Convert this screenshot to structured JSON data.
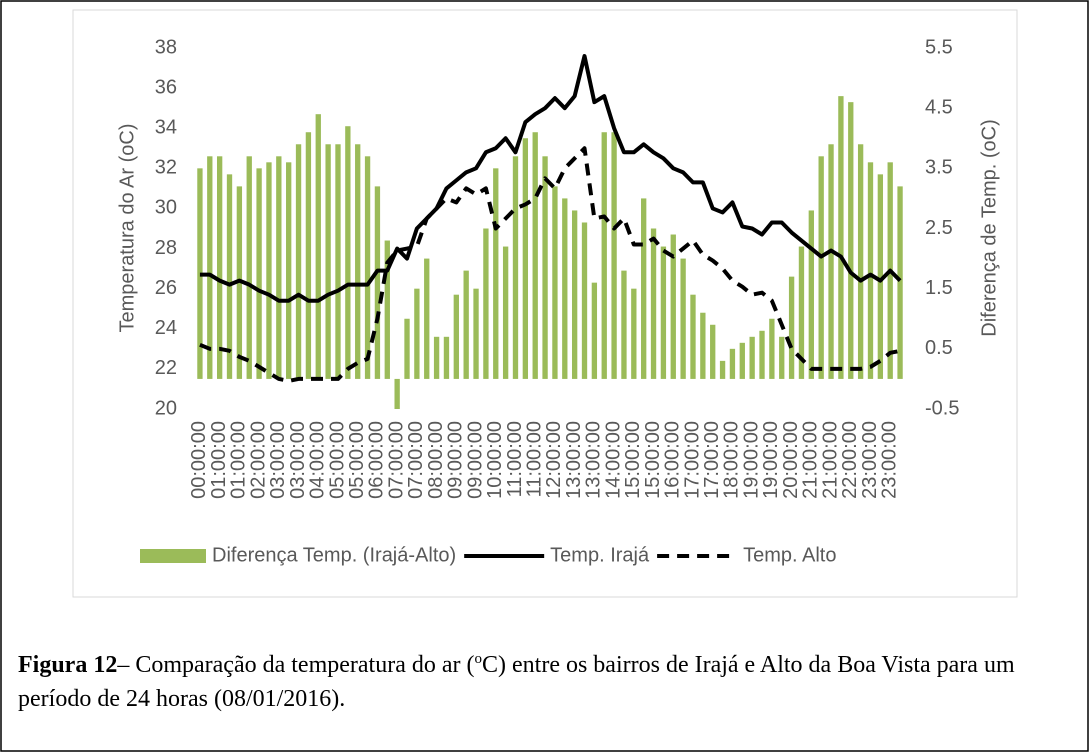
{
  "chart_data": {
    "type": "combo",
    "y_label": "Temperatura do Ar (oC)",
    "y2_label": "Diferença de Temp. (oC)",
    "categories": [
      "00:00:00",
      null,
      "01:00:00",
      null,
      "01:00:00",
      null,
      "02:00:00",
      null,
      "03:00:00",
      null,
      "03:00:00",
      null,
      "04:00:00",
      null,
      "05:00:00",
      null,
      "05:00:00",
      null,
      "06:00:00",
      null,
      "07:00:00",
      null,
      "07:00:00",
      null,
      "08:00:00",
      null,
      "09:00:00",
      null,
      "09:00:00",
      null,
      "10:00:00",
      null,
      "11:00:00",
      null,
      "11:00:00",
      null,
      "12:00:00",
      null,
      "13:00:00",
      null,
      "13:00:00",
      null,
      "14:00:00",
      null,
      "15:00:00",
      null,
      "15:00:00",
      null,
      "16:00:00",
      null,
      "17:00:00",
      null,
      "17:00:00",
      null,
      "18:00:00",
      null,
      "19:00:00",
      null,
      "19:00:00",
      null,
      "20:00:00",
      null,
      "21:00:00",
      null,
      "21:00:00",
      null,
      "22:00:00",
      null,
      "23:00:00",
      null,
      "23:00:00",
      null
    ],
    "ylim": [
      20,
      38
    ],
    "yticks": [
      20,
      22,
      24,
      26,
      28,
      30,
      32,
      34,
      36,
      38
    ],
    "y2lim": [
      -0.5,
      5.5
    ],
    "y2ticks": [
      -0.5,
      0.5,
      1.5,
      2.5,
      3.5,
      4.5,
      5.5
    ],
    "legend": "bottom",
    "series": [
      {
        "name": "Diferença Temp. (Irajá-Alto)",
        "type": "bar",
        "axis": "y2",
        "color": "#9bbb59",
        "values": [
          3.5,
          3.7,
          3.7,
          3.4,
          3.2,
          3.7,
          3.5,
          3.6,
          3.7,
          3.6,
          3.9,
          4.1,
          4.4,
          3.9,
          3.9,
          4.2,
          3.9,
          3.7,
          3.2,
          2.3,
          -0.5,
          1.0,
          1.5,
          2.0,
          0.7,
          0.7,
          1.4,
          1.8,
          1.5,
          2.5,
          3.5,
          2.2,
          3.7,
          4.0,
          4.1,
          3.7,
          3.2,
          3.0,
          2.8,
          2.6,
          1.6,
          4.1,
          4.1,
          1.8,
          1.5,
          3.0,
          2.5,
          2.2,
          2.4,
          2.0,
          1.4,
          1.1,
          0.9,
          0.3,
          0.5,
          0.6,
          0.7,
          0.8,
          1.0,
          0.7,
          1.7,
          2.2,
          2.8,
          3.7,
          3.9,
          4.7,
          4.6,
          3.9,
          3.6,
          3.4,
          3.6,
          3.2
        ]
      },
      {
        "name": "Temp. Irajá",
        "type": "line",
        "color": "#000000",
        "dashed": false,
        "values": [
          26.7,
          26.7,
          26.4,
          26.2,
          26.4,
          26.2,
          25.9,
          25.7,
          25.4,
          25.4,
          25.7,
          25.4,
          25.4,
          25.7,
          25.9,
          26.2,
          26.2,
          26.2,
          26.9,
          26.9,
          28.0,
          27.5,
          29.0,
          29.5,
          30.0,
          31.0,
          31.4,
          31.8,
          32.0,
          32.8,
          33.0,
          33.5,
          32.8,
          34.3,
          34.7,
          35.0,
          35.5,
          35.0,
          35.6,
          37.6,
          35.3,
          35.6,
          34.0,
          32.8,
          32.8,
          33.2,
          32.8,
          32.5,
          32.0,
          31.8,
          31.3,
          31.3,
          30.0,
          29.8,
          30.3,
          29.1,
          29.0,
          28.7,
          29.3,
          29.3,
          28.8,
          28.4,
          28.0,
          27.6,
          27.9,
          27.6,
          26.8,
          26.4,
          26.7,
          26.4,
          26.9,
          26.4
        ]
      },
      {
        "name": "Temp. Alto",
        "type": "line",
        "color": "#000000",
        "dashed": true,
        "values": [
          23.2,
          23.0,
          23.0,
          22.9,
          22.6,
          22.4,
          22.1,
          21.8,
          21.5,
          21.4,
          21.5,
          21.5,
          21.5,
          21.5,
          21.5,
          22.0,
          22.3,
          22.5,
          24.5,
          27.3,
          27.9,
          28.0,
          28.1,
          29.5,
          30.0,
          30.5,
          30.3,
          31.0,
          30.7,
          31.0,
          29.0,
          29.5,
          30.0,
          30.2,
          30.5,
          31.5,
          31.0,
          32.0,
          32.5,
          33.0,
          29.5,
          29.6,
          29.0,
          29.5,
          28.2,
          28.2,
          28.5,
          27.9,
          27.6,
          28.0,
          28.4,
          27.7,
          27.4,
          27.0,
          26.4,
          26.1,
          25.7,
          25.8,
          25.4,
          24.2,
          23.0,
          22.5,
          22.0,
          22.0,
          22.0,
          22.0,
          22.0,
          22.0,
          22.1,
          22.4,
          22.8,
          22.9
        ]
      }
    ]
  },
  "caption": {
    "label": "Figura 12",
    "text1": "– Comparação da temperatura do ar (",
    "sup": "o",
    "text2": "C) entre os bairros de Irajá e Alto da Boa Vista para um período de 24 horas (08/01/2016)."
  }
}
